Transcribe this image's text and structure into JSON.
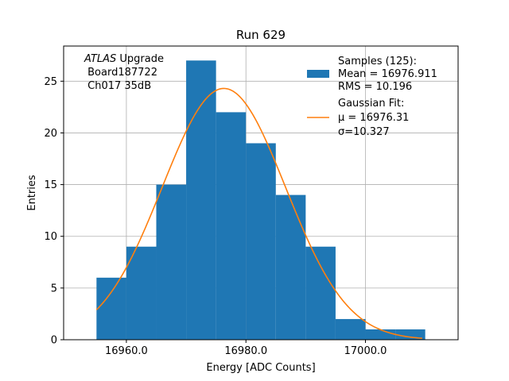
{
  "chart_data": {
    "type": "bar",
    "title": "Run 629",
    "xlabel": "Energy [ADC Counts]",
    "ylabel": "Entries",
    "xlim": [
      16949.5,
      17015.5
    ],
    "ylim": [
      0,
      28.4
    ],
    "xticks": [
      16960.0,
      16980.0,
      17000.0
    ],
    "xtick_labels": [
      "16960.0",
      "16980.0",
      "17000.0"
    ],
    "yticks": [
      0,
      5,
      10,
      15,
      20,
      25
    ],
    "ytick_labels": [
      "0",
      "5",
      "10",
      "15",
      "20",
      "25"
    ],
    "grid": true,
    "legend_position": "top-right",
    "bins": [
      {
        "x0": 16955.0,
        "x1": 16960.0,
        "count": 6
      },
      {
        "x0": 16960.0,
        "x1": 16965.0,
        "count": 9
      },
      {
        "x0": 16965.0,
        "x1": 16970.0,
        "count": 15
      },
      {
        "x0": 16970.0,
        "x1": 16975.0,
        "count": 27
      },
      {
        "x0": 16975.0,
        "x1": 16980.0,
        "count": 22
      },
      {
        "x0": 16980.0,
        "x1": 16985.0,
        "count": 19
      },
      {
        "x0": 16985.0,
        "x1": 16990.0,
        "count": 14
      },
      {
        "x0": 16990.0,
        "x1": 16995.0,
        "count": 9
      },
      {
        "x0": 16995.0,
        "x1": 17000.0,
        "count": 2
      },
      {
        "x0": 17000.0,
        "x1": 17005.0,
        "count": 1
      },
      {
        "x0": 17005.0,
        "x1": 17010.0,
        "count": 1
      }
    ],
    "fit": {
      "mu": 16976.31,
      "sigma": 10.327,
      "amplitude": 24.3,
      "x_range": [
        16955.0,
        17009.5
      ]
    },
    "colors": {
      "hist": "#1f77b4",
      "fit": "#ff7f0e",
      "grid": "#b0b0b0"
    },
    "legend": [
      {
        "kind": "patch",
        "color": "#1f77b4",
        "lines": [
          "Samples (125):",
          " Mean = 16976.911",
          " RMS = 10.196"
        ]
      },
      {
        "kind": "line",
        "color": "#ff7f0e",
        "lines": [
          "Gaussian Fit:",
          " μ = 16976.31",
          " σ=10.327"
        ]
      }
    ],
    "annotation": {
      "line1_italic": "ATLAS",
      "line1_rest": " Upgrade",
      "line2": " Board187722",
      "line3": " Ch017 35dB"
    }
  }
}
